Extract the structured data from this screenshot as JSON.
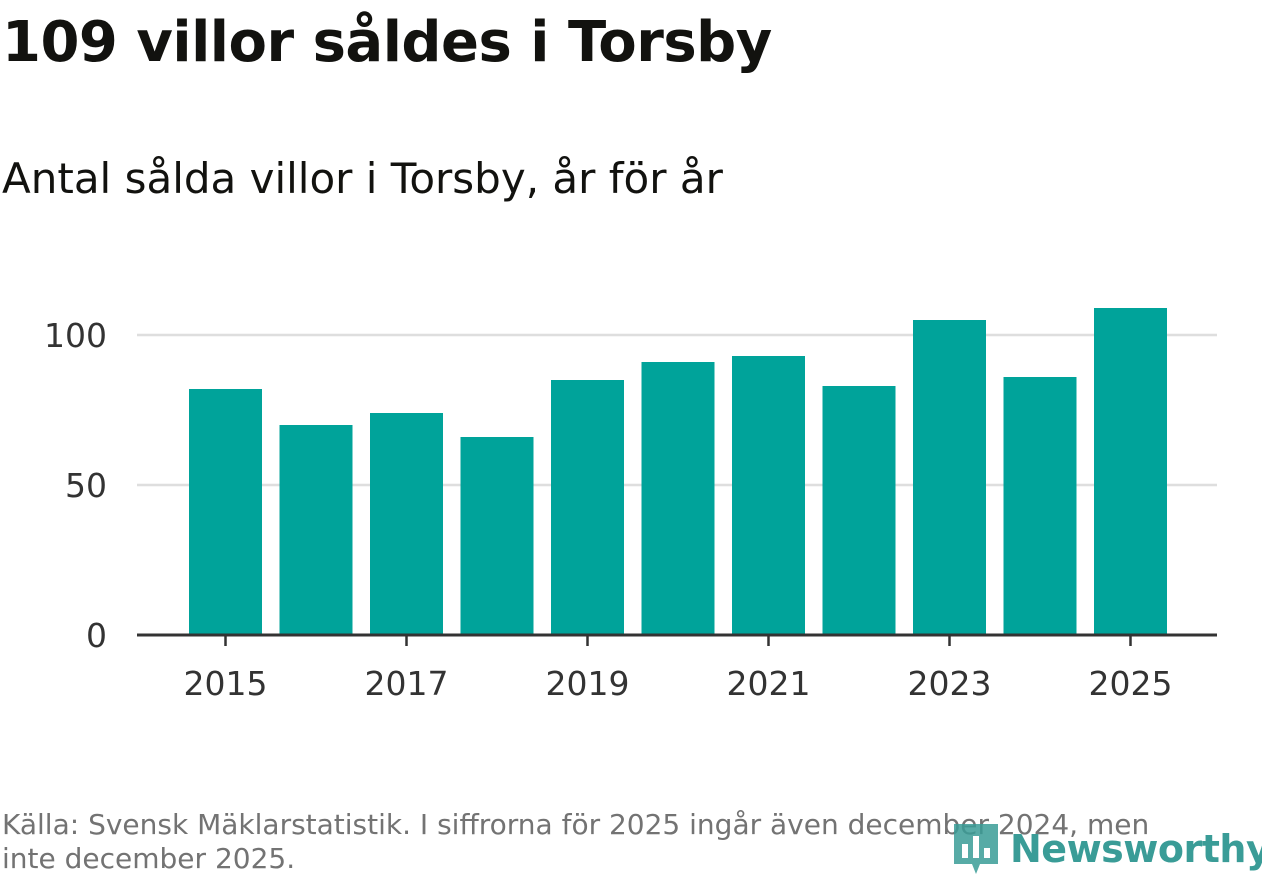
{
  "header": {
    "title": "109 villor såldes i Torsby",
    "subtitle": "Antal sålda villor i Torsby, år för år"
  },
  "chart_data": {
    "type": "bar",
    "title": "109 villor såldes i Torsby",
    "subtitle": "Antal sålda villor i Torsby, år för år",
    "xlabel": "",
    "ylabel": "",
    "categories": [
      "2015",
      "2016",
      "2017",
      "2018",
      "2019",
      "2020",
      "2021",
      "2022",
      "2023",
      "2024",
      "2025"
    ],
    "values": [
      82,
      70,
      74,
      66,
      85,
      91,
      93,
      83,
      105,
      86,
      109
    ],
    "x_tick_labels": [
      "2015",
      "2017",
      "2019",
      "2021",
      "2023",
      "2025"
    ],
    "y_ticks": [
      0,
      50,
      100
    ],
    "y_tick_labels": [
      "0",
      "50",
      "100"
    ],
    "ylim": [
      0,
      100
    ],
    "grid": true,
    "bar_color": "#00a39a",
    "grid_color": "#dedede",
    "axis_color": "#333333"
  },
  "footer": {
    "source": "Källa: Svensk Mäklarstatistik. I siffrorna för 2025 ingår även december 2024, men inte december 2025.",
    "brand": "Newsworthy",
    "brand_icon": "newsworthy-logo-icon",
    "brand_color": "#3a9c97"
  }
}
